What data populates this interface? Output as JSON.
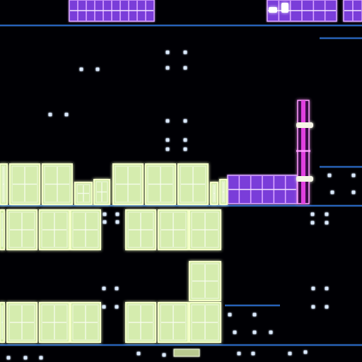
{
  "screen": {
    "background": "#000004",
    "description_free": true
  },
  "palette": {
    "platform_line": "#2a6fd6",
    "platform_glow": "#4fa3ff",
    "green_block_fill": "#cfe9a6",
    "green_block_glow": "#f4ffc8",
    "green_block_line": "#eef7d8",
    "purple_block_fill": "#7a3ed9",
    "purple_block_glow": "#d9a6ff",
    "magenta_pole": "#e040e0",
    "magenta_pole_glow": "#ff9cff",
    "pole_ring": "#f5f5e6",
    "star_dot": "#dbeaff"
  },
  "tiles": {
    "green_blocks": 20,
    "purple_blocks": 11,
    "stars": 27
  },
  "icons": [
    "green-brick-icon",
    "purple-brick-icon",
    "pole-icon",
    "star-dot-icon"
  ]
}
